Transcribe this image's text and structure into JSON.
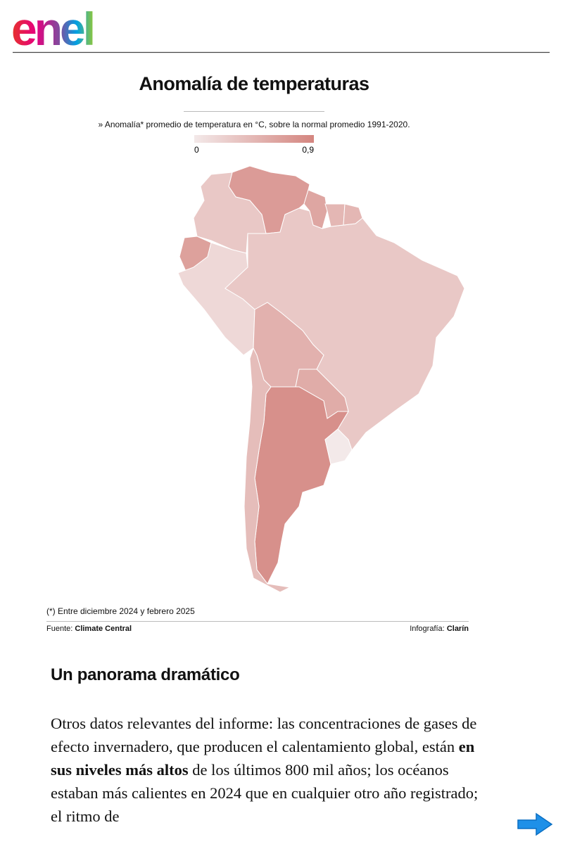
{
  "header": {
    "brand": "enel"
  },
  "map": {
    "title": "Anomalía de temperaturas",
    "subtitle": "» Anomalía* promedio de temperatura en °C, sobre la normal promedio 1991-2020.",
    "scale": {
      "range": [
        0,
        0.9
      ],
      "ticks": [
        0,
        {
          "value": 0.9,
          "label": "0,9"
        }
      ],
      "colors": [
        "#f3e9e9",
        "#d4857f"
      ]
    },
    "values": [
      0.7,
      0.3,
      0.65,
      0.15,
      0.3,
      0.5,
      0.55,
      0.8,
      0.4,
      0,
      0.6,
      0.45,
      0.45
    ],
    "note": "(*) Entre diciembre 2024 y febrero 2025",
    "source_label": "Fuente:",
    "source": "Climate Central",
    "credit_label": "Infografía:",
    "credit": "Clarín"
  },
  "article": {
    "heading": "Un panorama dramático",
    "paragraph": [
      "Otros datos relevantes del informe: las concentraciones de gases de efecto invernadero, que producen el calentamiento global, están ",
      "en sus niveles más altos",
      " de los últimos 800 mil años; los océanos estaban más calientes en 2024 que en cualquier otro año registrado; el ritmo de"
    ]
  }
}
